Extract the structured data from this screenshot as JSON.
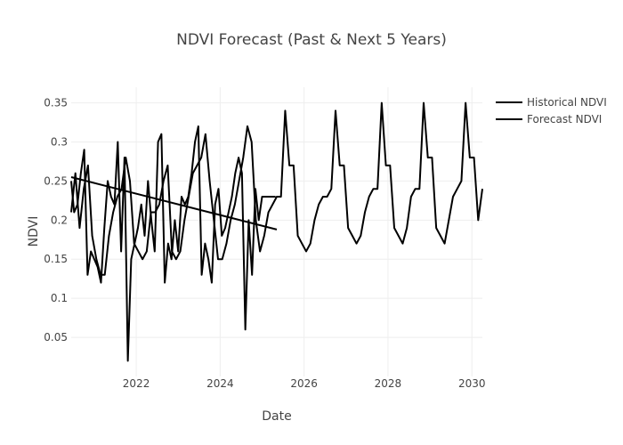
{
  "chart_data": {
    "type": "line",
    "title": "NDVI Forecast (Past & Next 5 Years)",
    "xlabel": "Date",
    "ylabel": "NDVI",
    "xlim": [
      2020.45,
      2030.25
    ],
    "ylim": [
      0.0,
      0.37
    ],
    "x_ticks": [
      2022,
      2024,
      2026,
      2028,
      2030
    ],
    "y_ticks": [
      0.05,
      0.1,
      0.15,
      0.2,
      0.25,
      0.3,
      0.35
    ],
    "grid": true,
    "legend_position": "top-right",
    "series": [
      {
        "name": "Historical NDVI",
        "color": "#000000",
        "x": [
          2020.45,
          2020.52,
          2020.6,
          2020.68,
          2020.76,
          2020.84,
          2020.92,
          2021.0,
          2021.08,
          2021.16,
          2021.24,
          2021.32,
          2021.4,
          2021.48,
          2021.56,
          2021.64,
          2021.72,
          2021.8,
          2021.88,
          2021.96,
          2022.04,
          2022.12,
          2022.2,
          2022.28,
          2022.36,
          2022.44,
          2022.52,
          2022.6,
          2022.68,
          2022.76,
          2022.84,
          2022.92,
          2023.0,
          2023.08,
          2023.16,
          2023.24,
          2023.32,
          2023.4,
          2023.48,
          2023.56,
          2023.64,
          2023.72,
          2023.8,
          2023.88,
          2023.96,
          2024.04,
          2024.12,
          2024.2,
          2024.28,
          2024.36,
          2024.44,
          2024.52,
          2024.6,
          2024.68,
          2024.76,
          2024.84,
          2024.92,
          2025.0,
          2025.08,
          2025.16,
          2025.24,
          2025.32
        ],
        "values": [
          0.25,
          0.21,
          0.22,
          0.26,
          0.29,
          0.13,
          0.16,
          0.15,
          0.14,
          0.12,
          0.19,
          0.25,
          0.23,
          0.22,
          0.3,
          0.16,
          0.28,
          0.02,
          0.15,
          0.17,
          0.19,
          0.22,
          0.18,
          0.25,
          0.2,
          0.16,
          0.3,
          0.31,
          0.12,
          0.17,
          0.15,
          0.2,
          0.16,
          0.23,
          0.22,
          0.23,
          0.26,
          0.3,
          0.32,
          0.13,
          0.17,
          0.15,
          0.12,
          0.22,
          0.24,
          0.18,
          0.19,
          0.21,
          0.23,
          0.26,
          0.28,
          0.26,
          0.06,
          0.2,
          0.13,
          0.24,
          0.2,
          0.23,
          0.23,
          0.23,
          0.23,
          0.23
        ]
      },
      {
        "name": "Forecast NDVI",
        "color": "#000000",
        "x": [
          2020.45,
          2020.55,
          2020.65,
          2020.75,
          2020.85,
          2020.95,
          2021.05,
          2021.15,
          2021.25,
          2021.35,
          2021.45,
          2021.55,
          2021.65,
          2021.75,
          2021.85,
          2021.95,
          2022.05,
          2022.15,
          2022.25,
          2022.35,
          2022.45,
          2022.55,
          2022.65,
          2022.75,
          2022.85,
          2022.95,
          2023.05,
          2023.15,
          2023.25,
          2023.35,
          2023.45,
          2023.55,
          2023.65,
          2023.75,
          2023.85,
          2023.95,
          2024.05,
          2024.15,
          2024.25,
          2024.35,
          2024.45,
          2024.55,
          2024.65,
          2024.75,
          2024.85,
          2024.95,
          2025.05,
          2025.15,
          2025.25,
          2025.35,
          2025.45,
          2025.55,
          2025.65,
          2025.75,
          2025.85,
          2025.95,
          2026.05,
          2026.15,
          2026.25,
          2026.35,
          2026.45,
          2026.55,
          2026.65,
          2026.75,
          2026.85,
          2026.95,
          2027.05,
          2027.15,
          2027.25,
          2027.35,
          2027.45,
          2027.55,
          2027.65,
          2027.75,
          2027.85,
          2027.95,
          2028.05,
          2028.15,
          2028.25,
          2028.35,
          2028.45,
          2028.55,
          2028.65,
          2028.75,
          2028.85,
          2028.95,
          2029.05,
          2029.15,
          2029.25,
          2029.35,
          2029.45,
          2029.55,
          2029.65,
          2029.75,
          2029.85,
          2029.95,
          2030.05,
          2030.15,
          2030.25
        ],
        "values": [
          0.21,
          0.26,
          0.19,
          0.24,
          0.27,
          0.18,
          0.15,
          0.13,
          0.13,
          0.18,
          0.21,
          0.23,
          0.24,
          0.28,
          0.25,
          0.17,
          0.16,
          0.15,
          0.16,
          0.21,
          0.21,
          0.22,
          0.25,
          0.27,
          0.16,
          0.15,
          0.16,
          0.2,
          0.23,
          0.26,
          0.27,
          0.28,
          0.31,
          0.25,
          0.2,
          0.15,
          0.15,
          0.17,
          0.2,
          0.22,
          0.25,
          0.28,
          0.32,
          0.3,
          0.2,
          0.16,
          0.18,
          0.21,
          0.22,
          0.23,
          0.23,
          0.34,
          0.27,
          0.27,
          0.18,
          0.17,
          0.16,
          0.17,
          0.2,
          0.22,
          0.23,
          0.23,
          0.24,
          0.34,
          0.27,
          0.27,
          0.19,
          0.18,
          0.17,
          0.18,
          0.21,
          0.23,
          0.24,
          0.24,
          0.35,
          0.27,
          0.27,
          0.19,
          0.18,
          0.17,
          0.19,
          0.23,
          0.24,
          0.24,
          0.35,
          0.28,
          0.28,
          0.19,
          0.18,
          0.17,
          0.2,
          0.23,
          0.24,
          0.25,
          0.35,
          0.28,
          0.28,
          0.2,
          0.24
        ]
      },
      {
        "name": "",
        "color": "#000000",
        "x": [
          2020.45,
          2025.35
        ],
        "values": [
          0.255,
          0.188
        ]
      }
    ]
  }
}
